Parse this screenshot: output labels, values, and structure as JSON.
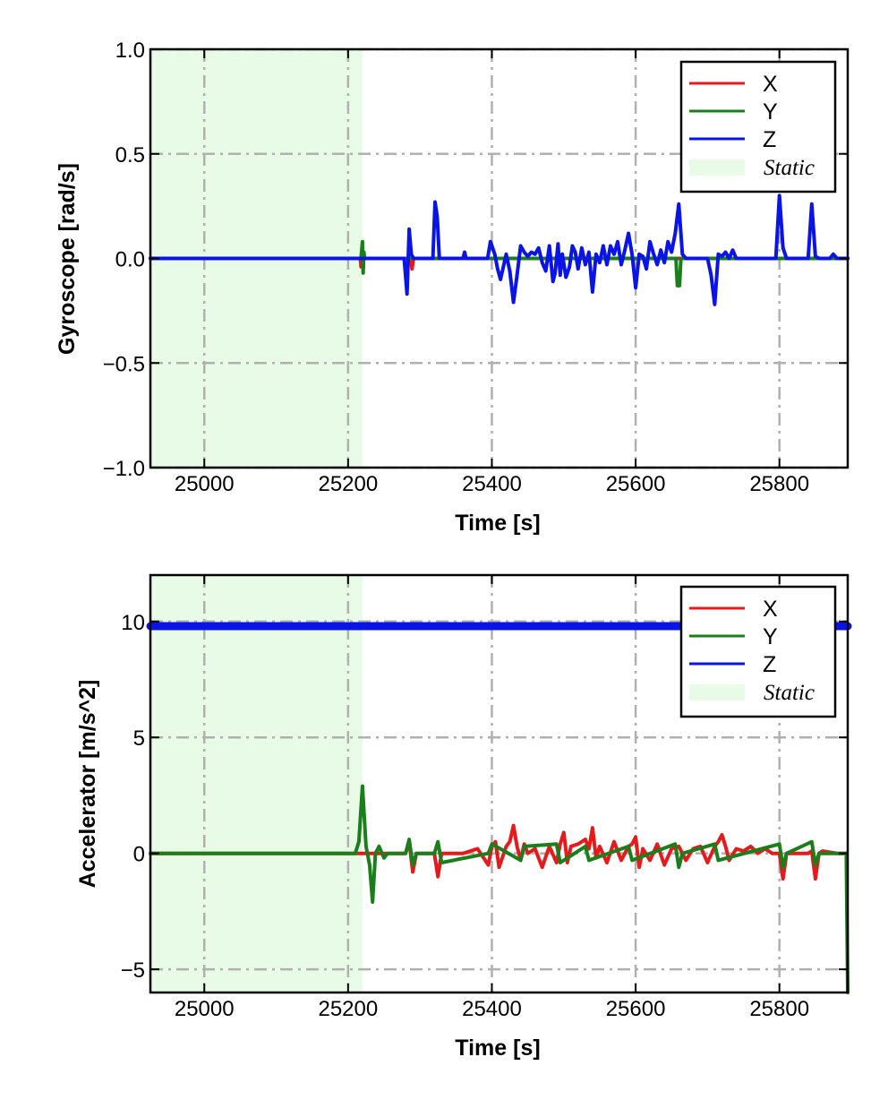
{
  "colors": {
    "X": "#e41a1c",
    "Y": "#1a7f1a",
    "Z": "#0a14e6",
    "static_fill": "#e8fbe6",
    "grid": "#b0b0b0"
  },
  "chart_data": [
    {
      "type": "line",
      "title": "",
      "xlabel": "Time [s]",
      "ylabel": "Gyroscope [rad/s]",
      "xlim": [
        24925,
        25895
      ],
      "ylim": [
        -1.0,
        1.0
      ],
      "xticks": [
        25000,
        25200,
        25400,
        25600,
        25800
      ],
      "yticks": [
        -1.0,
        -0.5,
        0.0,
        0.5,
        1.0
      ],
      "ytick_labels": [
        "−1.0",
        "−0.5",
        "0.0",
        "0.5",
        "1.0"
      ],
      "grid": true,
      "legend_position": "top-right",
      "legend": [
        "X",
        "Y",
        "Z",
        "Static"
      ],
      "static_region": [
        24925,
        25220
      ],
      "series": [
        {
          "name": "X",
          "color_key": "X",
          "x": [
            24925,
            25217,
            25218,
            25220,
            25222,
            25287,
            25289,
            25291,
            25895
          ],
          "y": [
            0,
            0,
            -0.04,
            0.02,
            0,
            0,
            -0.05,
            0,
            0
          ]
        },
        {
          "name": "Y",
          "color_key": "Y",
          "x": [
            24925,
            25218,
            25220,
            25221,
            25222,
            25223,
            25656,
            25658,
            25661,
            25663,
            25895
          ],
          "y": [
            0,
            0,
            0.08,
            -0.07,
            0.03,
            0,
            0,
            -0.13,
            -0.13,
            0,
            0
          ]
        },
        {
          "name": "Z",
          "color_key": "Z",
          "x": [
            24925,
            25278,
            25282,
            25285,
            25288,
            25291,
            25318,
            25321,
            25324,
            25327,
            25360,
            25362,
            25364,
            25394,
            25398,
            25404,
            25408,
            25412,
            25420,
            25425,
            25430,
            25435,
            25440,
            25445,
            25450,
            25455,
            25460,
            25465,
            25470,
            25475,
            25480,
            25485,
            25488,
            25492,
            25495,
            25498,
            25503,
            25508,
            25512,
            25516,
            25520,
            25525,
            25530,
            25535,
            25540,
            25545,
            25550,
            25555,
            25560,
            25565,
            25570,
            25575,
            25580,
            25585,
            25590,
            25595,
            25600,
            25605,
            25610,
            25615,
            25620,
            25625,
            25630,
            25635,
            25640,
            25645,
            25650,
            25655,
            25660,
            25665,
            25670,
            25700,
            25705,
            25710,
            25715,
            25720,
            25725,
            25730,
            25735,
            25740,
            25795,
            25800,
            25805,
            25810,
            25840,
            25845,
            25850,
            25855,
            25870,
            25875,
            25880,
            25895
          ],
          "y": [
            0,
            0,
            -0.17,
            0.14,
            0.02,
            0,
            0,
            0.27,
            0.2,
            0,
            0,
            0.03,
            0,
            0,
            0.08,
            0.02,
            -0.05,
            -0.1,
            0.02,
            -0.06,
            -0.21,
            -0.08,
            0.06,
            0.03,
            0.01,
            0.03,
            0.02,
            0.05,
            -0.02,
            -0.06,
            0.06,
            -0.11,
            -0.07,
            0.07,
            -0.08,
            0.02,
            -0.09,
            -0.04,
            0.06,
            0.03,
            -0.05,
            0.05,
            -0.03,
            0.03,
            -0.16,
            0.02,
            -0.02,
            0.06,
            -0.03,
            0.06,
            0.02,
            0.08,
            -0.03,
            0.04,
            0.12,
            0.02,
            -0.14,
            0.02,
            0.01,
            -0.05,
            0.08,
            0.02,
            -0.03,
            0.04,
            -0.02,
            0.08,
            0.03,
            0.12,
            0.26,
            0.02,
            0,
            0,
            -0.08,
            -0.22,
            0.02,
            0.01,
            0.03,
            0,
            0.04,
            0,
            0,
            0.3,
            0.05,
            0,
            0,
            0.26,
            0.01,
            0,
            0,
            0.02,
            0,
            0
          ]
        }
      ]
    },
    {
      "type": "line",
      "title": "",
      "xlabel": "Time [s]",
      "ylabel": "Accelerator [m/s^2]",
      "xlim": [
        24925,
        25895
      ],
      "ylim": [
        -6,
        12
      ],
      "xticks": [
        25000,
        25200,
        25400,
        25600,
        25800
      ],
      "yticks": [
        -5,
        0,
        5,
        10
      ],
      "ytick_labels": [
        "−5",
        "0",
        "5",
        "10"
      ],
      "grid": true,
      "legend_position": "top-right",
      "legend": [
        "X",
        "Y",
        "Z",
        "Static"
      ],
      "static_region": [
        24925,
        25220
      ],
      "series": [
        {
          "name": "X",
          "color_key": "X",
          "x": [
            24925,
            25280,
            25285,
            25290,
            25295,
            25320,
            25325,
            25330,
            25360,
            25380,
            25395,
            25400,
            25405,
            25410,
            25420,
            25425,
            25430,
            25435,
            25440,
            25445,
            25450,
            25460,
            25470,
            25480,
            25490,
            25495,
            25500,
            25505,
            25510,
            25520,
            25530,
            25535,
            25540,
            25545,
            25550,
            25560,
            25570,
            25580,
            25590,
            25595,
            25600,
            25605,
            25610,
            25620,
            25630,
            25640,
            25650,
            25660,
            25670,
            25680,
            25690,
            25700,
            25710,
            25715,
            25720,
            25725,
            25730,
            25740,
            25750,
            25760,
            25770,
            25780,
            25790,
            25800,
            25805,
            25810,
            25840,
            25845,
            25850,
            25855,
            25860,
            25880,
            25893
          ],
          "y": [
            0,
            0,
            0.5,
            -0.8,
            0,
            0,
            -1.0,
            0,
            0,
            0.2,
            -0.5,
            0.3,
            0.5,
            -0.6,
            0.3,
            0.5,
            1.2,
            0.3,
            -0.3,
            0.4,
            0,
            0.2,
            -0.6,
            0.3,
            -0.4,
            0.4,
            0.9,
            -0.4,
            0.3,
            0.4,
            0.6,
            0.2,
            1.1,
            -0.2,
            0.3,
            -0.4,
            0.5,
            -0.3,
            0.3,
            0.4,
            0.7,
            -0.6,
            0.2,
            -0.3,
            0.4,
            -0.5,
            0.2,
            0.3,
            -0.3,
            0.2,
            0.3,
            -0.4,
            0.3,
            0.5,
            0.8,
            0.3,
            -0.3,
            0.2,
            0.1,
            0.3,
            0,
            0.2,
            0,
            0,
            -1.1,
            0,
            0,
            0.1,
            -1.1,
            0,
            0.1,
            0,
            0
          ]
        },
        {
          "name": "Y",
          "color_key": "Y",
          "x": [
            24925,
            25210,
            25215,
            25220,
            25225,
            25230,
            25234,
            25238,
            25243,
            25250,
            25255,
            25280,
            25285,
            25290,
            25295,
            25320,
            25325,
            25330,
            25395,
            25400,
            25440,
            25445,
            25490,
            25495,
            25530,
            25535,
            25590,
            25595,
            25655,
            25660,
            25665,
            25710,
            25715,
            25800,
            25805,
            25810,
            25845,
            25850,
            25855,
            25890,
            25893,
            25895
          ],
          "y": [
            0,
            0,
            0.5,
            2.9,
            0.3,
            -0.5,
            -2.1,
            0,
            0.3,
            -0.2,
            0,
            0,
            0.6,
            -0.5,
            0,
            0,
            0.5,
            -0.4,
            0,
            0.4,
            -0.3,
            0.3,
            0.4,
            -0.4,
            0.3,
            -0.3,
            0.3,
            -0.3,
            0.4,
            -0.6,
            0,
            0.4,
            -0.3,
            0.4,
            -0.6,
            0,
            0.5,
            -0.5,
            0,
            0,
            0,
            -6
          ]
        },
        {
          "name": "Z",
          "color_key": "Z",
          "x": [
            24925,
            25895
          ],
          "y": [
            9.8,
            9.8
          ]
        }
      ]
    }
  ]
}
